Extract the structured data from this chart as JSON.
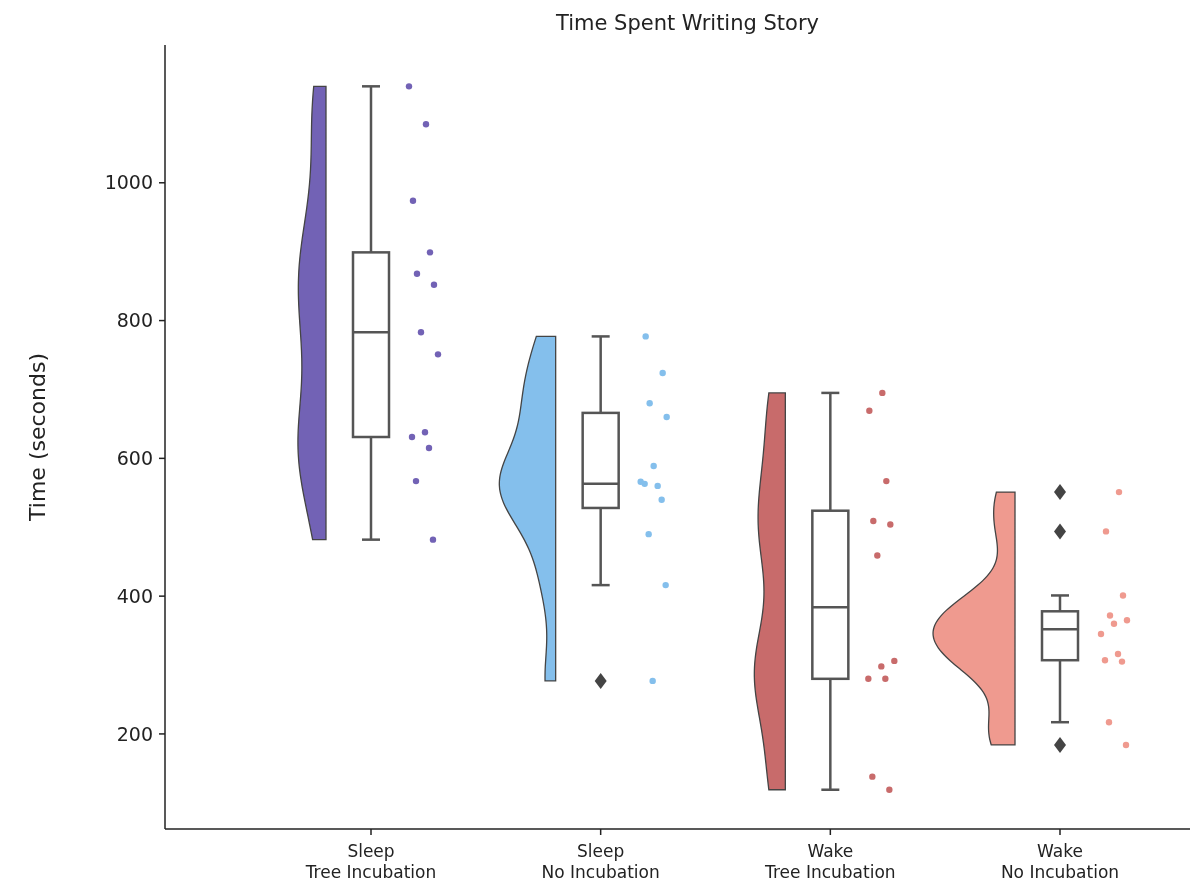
{
  "chart_data": {
    "type": "box",
    "title": "Time Spent Writing Story",
    "ylabel": "Time (seconds)",
    "categories": [
      "Sleep\nTree Incubation",
      "Sleep\nNo Incubation",
      "Wake\nTree Incubation",
      "Wake\nNo Incubation"
    ],
    "boxes": [
      {
        "low": 482,
        "q1": 631,
        "median": 783,
        "q3": 899,
        "high": 1140
      },
      {
        "low": 416,
        "q1": 528,
        "median": 563,
        "q3": 666,
        "high": 777,
        "outliers": [
          277
        ]
      },
      {
        "low": 119,
        "q1": 280,
        "median": 384,
        "q3": 524,
        "high": 695
      },
      {
        "low": 217,
        "q1": 307,
        "median": 352,
        "q3": 378,
        "high": 401,
        "outliers": [
          551,
          494,
          184
        ]
      }
    ],
    "ylim": [
      62,
      1200
    ],
    "yticks": [
      200,
      400,
      600,
      800,
      1000
    ],
    "grid": false,
    "series": [
      {
        "type": "scatter",
        "color": "#7262b5",
        "x": [
          "Sleep\nTree Incubation",
          "Sleep\nTree Incubation",
          "Sleep\nTree Incubation",
          "Sleep\nTree Incubation",
          "Sleep\nTree Incubation",
          "Sleep\nTree Incubation",
          "Sleep\nTree Incubation",
          "Sleep\nTree Incubation",
          "Sleep\nTree Incubation",
          "Sleep\nTree Incubation",
          "Sleep\nTree Incubation",
          "Sleep\nTree Incubation",
          "Sleep\nTree Incubation"
        ],
        "values": [
          1140,
          1085,
          974,
          899,
          868,
          852,
          783,
          751,
          638,
          631,
          615,
          567,
          482
        ]
      },
      {
        "type": "scatter",
        "color": "#84bfec",
        "x": [
          "Sleep\nNo Incubation",
          "Sleep\nNo Incubation",
          "Sleep\nNo Incubation",
          "Sleep\nNo Incubation",
          "Sleep\nNo Incubation",
          "Sleep\nNo Incubation",
          "Sleep\nNo Incubation",
          "Sleep\nNo Incubation",
          "Sleep\nNo Incubation",
          "Sleep\nNo Incubation",
          "Sleep\nNo Incubation",
          "Sleep\nNo Incubation"
        ],
        "values": [
          777,
          724,
          680,
          660,
          589,
          566,
          560,
          563,
          540,
          490,
          416,
          277
        ]
      },
      {
        "type": "scatter",
        "color": "#c86b6b",
        "x": [
          "Wake\nTree Incubation",
          "Wake\nTree Incubation",
          "Wake\nTree Incubation",
          "Wake\nTree Incubation",
          "Wake\nTree Incubation",
          "Wake\nTree Incubation",
          "Wake\nTree Incubation",
          "Wake\nTree Incubation",
          "Wake\nTree Incubation",
          "Wake\nTree Incubation",
          "Wake\nTree Incubation",
          "Wake\nTree Incubation"
        ],
        "values": [
          695,
          669,
          567,
          509,
          504,
          459,
          306,
          298,
          280,
          280,
          138,
          119
        ]
      },
      {
        "type": "scatter",
        "color": "#ef9a8f",
        "x": [
          "Wake\nNo Incubation",
          "Wake\nNo Incubation",
          "Wake\nNo Incubation",
          "Wake\nNo Incubation",
          "Wake\nNo Incubation",
          "Wake\nNo Incubation",
          "Wake\nNo Incubation",
          "Wake\nNo Incubation",
          "Wake\nNo Incubation",
          "Wake\nNo Incubation",
          "Wake\nNo Incubation",
          "Wake\nNo Incubation"
        ],
        "values": [
          551,
          494,
          401,
          372,
          365,
          360,
          345,
          316,
          307,
          305,
          217,
          184
        ]
      }
    ]
  }
}
